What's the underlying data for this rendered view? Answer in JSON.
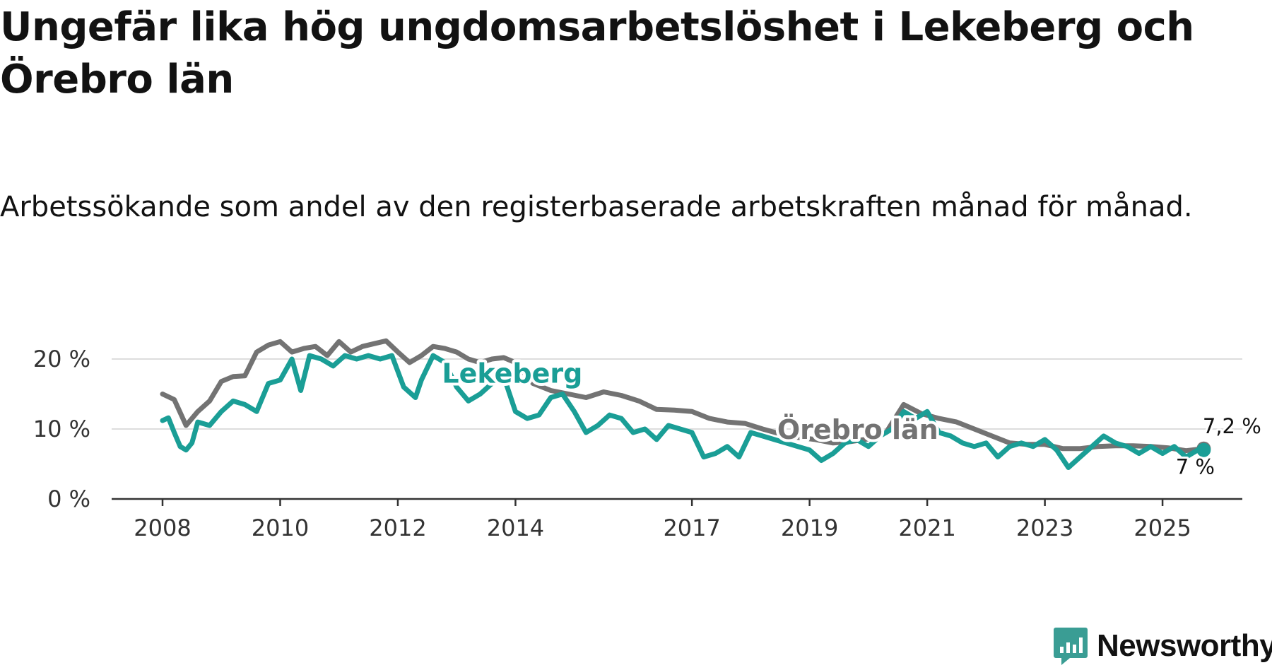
{
  "title": "Ungefär lika hög ungdomsarbetslöshet i Lekeberg och Örebro län",
  "subtitle": "Arbetssökande som andel av den registerbaserade arbetskraften månad för månad.",
  "brand": {
    "name": "Newsworthy",
    "color": "#3a9d94",
    "icon": "newsworthy-logo-icon"
  },
  "chart_data": {
    "type": "line",
    "title": "Ungefär lika hög ungdomsarbetslöshet i Lekeberg och Örebro län",
    "subtitle": "Arbetssökande som andel av den registerbaserade arbetskraften månad för månad.",
    "xlabel": "",
    "ylabel": "",
    "xlim": [
      2008,
      2025.9
    ],
    "ylim": [
      0,
      23
    ],
    "grid": true,
    "x_ticks": [
      {
        "value": 2008,
        "label": "2008"
      },
      {
        "value": 2010,
        "label": "2010"
      },
      {
        "value": 2012,
        "label": "2012"
      },
      {
        "value": 2014,
        "label": "2014"
      },
      {
        "value": 2017,
        "label": "2017"
      },
      {
        "value": 2019,
        "label": "2019"
      },
      {
        "value": 2021,
        "label": "2021"
      },
      {
        "value": 2023,
        "label": "2023"
      },
      {
        "value": 2025,
        "label": "2025"
      }
    ],
    "y_ticks": [
      {
        "value": 0,
        "label": "0 %"
      },
      {
        "value": 10,
        "label": "10 %"
      },
      {
        "value": 20,
        "label": "20 %"
      }
    ],
    "series": [
      {
        "name": "Örebro län",
        "color": "#737373",
        "end_label": "7,2 %",
        "x": [
          2008.0,
          2008.2,
          2008.4,
          2008.6,
          2008.8,
          2009.0,
          2009.2,
          2009.4,
          2009.6,
          2009.8,
          2010.0,
          2010.2,
          2010.4,
          2010.6,
          2010.8,
          2011.0,
          2011.2,
          2011.4,
          2011.6,
          2011.8,
          2012.0,
          2012.2,
          2012.4,
          2012.6,
          2012.8,
          2013.0,
          2013.2,
          2013.4,
          2013.6,
          2013.8,
          2014.0,
          2014.3,
          2014.6,
          2014.9,
          2015.2,
          2015.5,
          2015.8,
          2016.1,
          2016.4,
          2016.7,
          2017.0,
          2017.3,
          2017.6,
          2017.9,
          2018.2,
          2018.5,
          2018.8,
          2019.1,
          2019.4,
          2019.7,
          2020.0,
          2020.3,
          2020.6,
          2020.9,
          2021.2,
          2021.5,
          2021.8,
          2022.1,
          2022.4,
          2022.7,
          2023.0,
          2023.3,
          2023.6,
          2023.9,
          2024.2,
          2024.5,
          2024.8,
          2025.1,
          2025.4,
          2025.7
        ],
        "values": [
          15.0,
          14.2,
          10.5,
          12.5,
          14.0,
          16.8,
          17.5,
          17.6,
          21.0,
          22.0,
          22.5,
          21.0,
          21.5,
          21.8,
          20.5,
          22.5,
          21.0,
          21.8,
          22.2,
          22.6,
          21.0,
          19.5,
          20.5,
          21.8,
          21.5,
          21.0,
          20.0,
          19.5,
          20.0,
          20.2,
          19.5,
          16.5,
          15.5,
          15.0,
          14.5,
          15.3,
          14.8,
          14.0,
          12.8,
          12.7,
          12.5,
          11.5,
          11.0,
          10.8,
          10.0,
          9.3,
          8.8,
          8.5,
          8.0,
          8.2,
          8.6,
          9.5,
          13.5,
          12.2,
          11.5,
          11.0,
          10.0,
          9.0,
          8.0,
          7.8,
          7.8,
          7.2,
          7.2,
          7.5,
          7.6,
          7.6,
          7.5,
          7.3,
          6.9,
          7.2
        ]
      },
      {
        "name": "Lekeberg",
        "color": "#1a9e96",
        "end_label": "7 %",
        "x": [
          2008.0,
          2008.1,
          2008.2,
          2008.3,
          2008.4,
          2008.5,
          2008.6,
          2008.8,
          2009.0,
          2009.2,
          2009.4,
          2009.6,
          2009.8,
          2010.0,
          2010.2,
          2010.35,
          2010.5,
          2010.7,
          2010.9,
          2011.1,
          2011.3,
          2011.5,
          2011.7,
          2011.9,
          2012.1,
          2012.3,
          2012.4,
          2012.6,
          2012.8,
          2013.0,
          2013.2,
          2013.4,
          2013.6,
          2013.8,
          2014.0,
          2014.2,
          2014.4,
          2014.6,
          2014.8,
          2015.0,
          2015.2,
          2015.4,
          2015.6,
          2015.8,
          2016.0,
          2016.2,
          2016.4,
          2016.6,
          2016.8,
          2017.0,
          2017.2,
          2017.4,
          2017.6,
          2017.8,
          2018.0,
          2018.2,
          2018.4,
          2018.6,
          2018.8,
          2019.0,
          2019.2,
          2019.4,
          2019.6,
          2019.8,
          2020.0,
          2020.2,
          2020.4,
          2020.6,
          2020.8,
          2021.0,
          2021.2,
          2021.4,
          2021.6,
          2021.8,
          2022.0,
          2022.2,
          2022.4,
          2022.6,
          2022.8,
          2023.0,
          2023.2,
          2023.4,
          2023.6,
          2023.8,
          2024.0,
          2024.2,
          2024.4,
          2024.6,
          2024.8,
          2025.0,
          2025.2,
          2025.4,
          2025.6,
          2025.7
        ],
        "values": [
          11.2,
          11.6,
          9.5,
          7.5,
          7.0,
          8.0,
          11.0,
          10.5,
          12.5,
          14.0,
          13.5,
          12.5,
          16.5,
          17.0,
          20.0,
          15.5,
          20.5,
          20.0,
          19.0,
          20.5,
          20.0,
          20.5,
          20.0,
          20.5,
          16.0,
          14.5,
          17.0,
          20.5,
          19.5,
          16.0,
          14.0,
          15.0,
          16.5,
          17.5,
          12.5,
          11.5,
          12.0,
          14.5,
          15.0,
          12.5,
          9.5,
          10.5,
          12.0,
          11.5,
          9.5,
          10.0,
          8.5,
          10.5,
          10.0,
          9.5,
          6.0,
          6.5,
          7.5,
          6.0,
          9.5,
          9.0,
          8.5,
          8.0,
          7.5,
          7.0,
          5.5,
          6.5,
          8.0,
          8.5,
          7.5,
          9.0,
          10.0,
          12.5,
          11.5,
          12.5,
          9.5,
          9.0,
          8.0,
          7.5,
          8.0,
          6.0,
          7.5,
          8.0,
          7.5,
          8.5,
          7.0,
          4.5,
          6.0,
          7.5,
          9.0,
          8.0,
          7.5,
          6.5,
          7.5,
          6.5,
          7.5,
          6.0,
          7.0,
          7.0
        ]
      }
    ]
  }
}
